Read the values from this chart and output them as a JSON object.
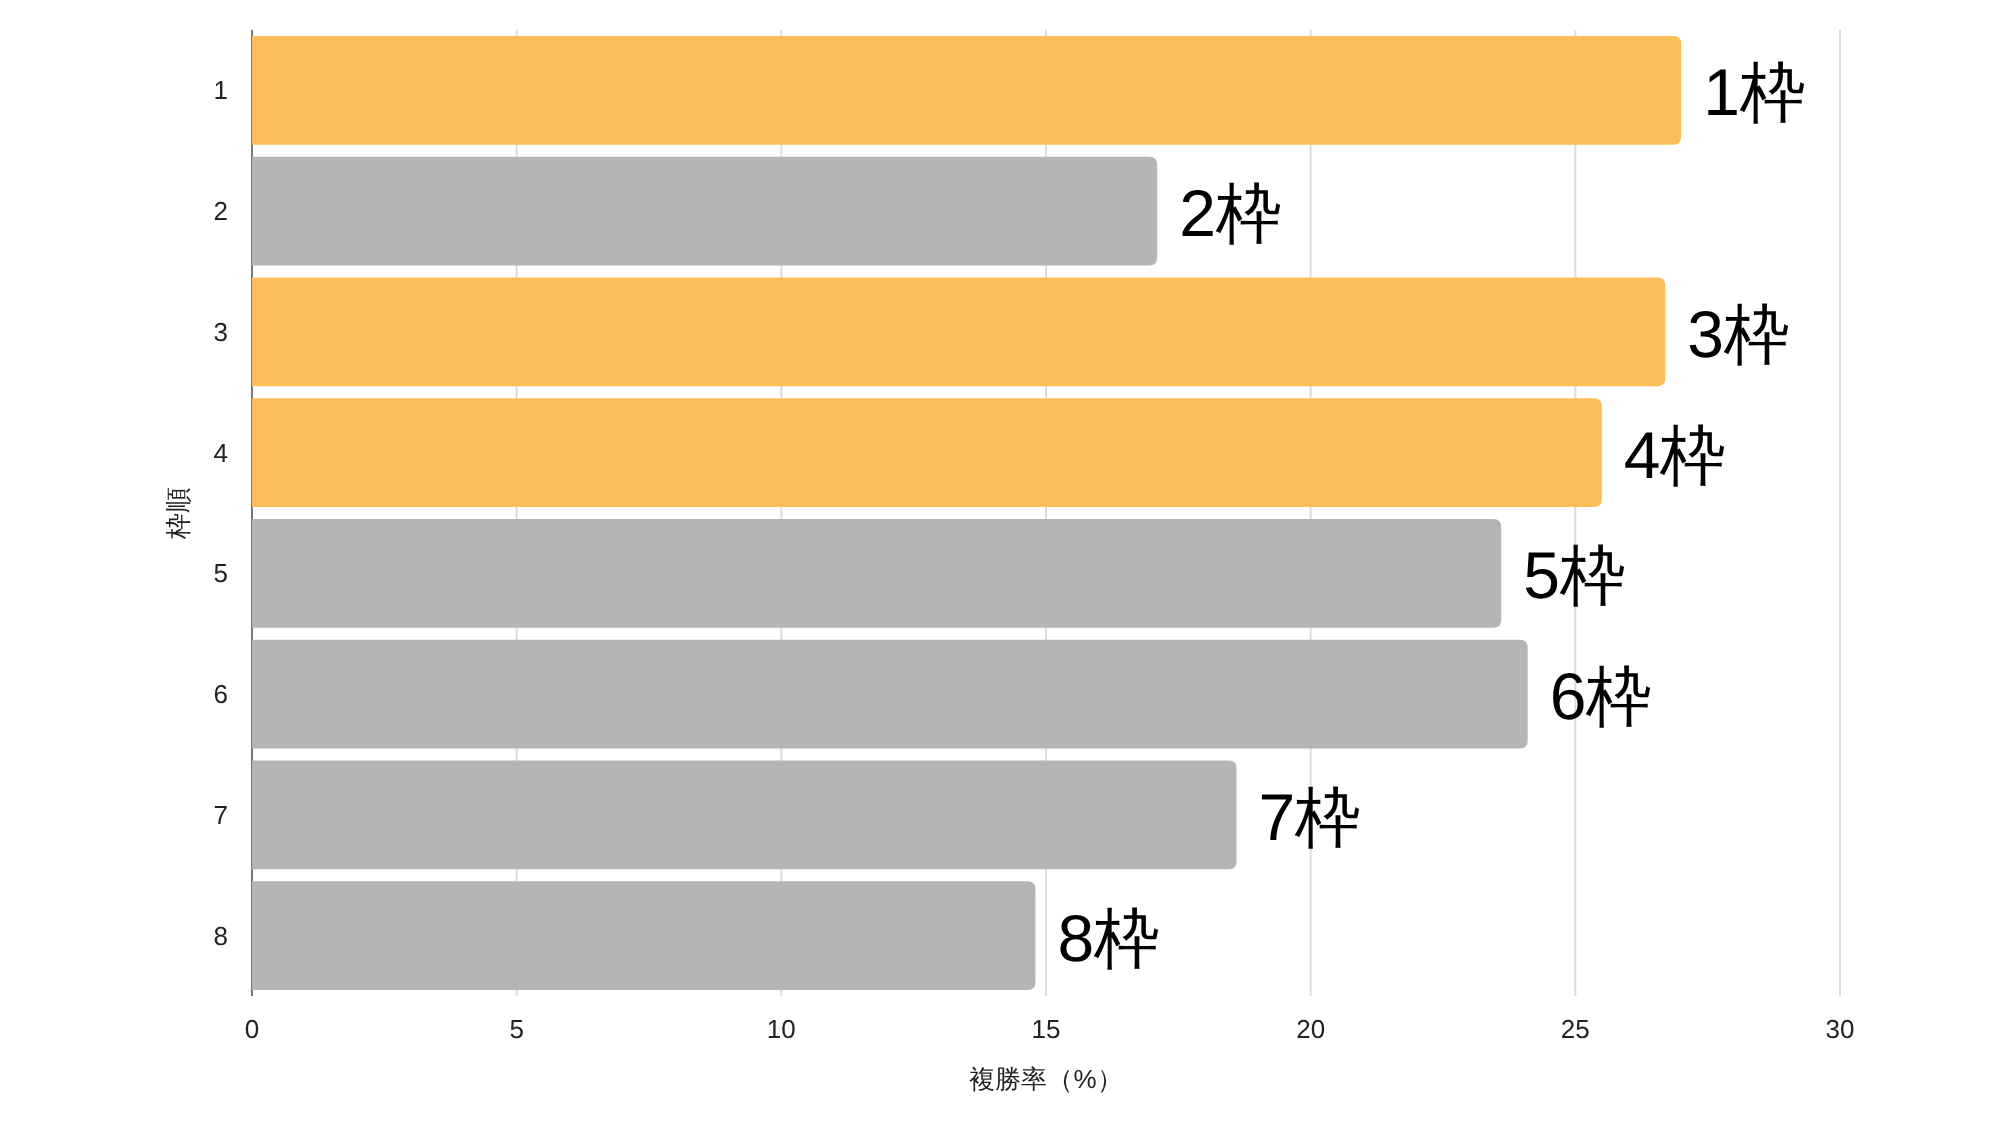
{
  "chart_data": {
    "type": "bar",
    "orientation": "horizontal",
    "xlabel": "複勝率（%）",
    "ylabel": "枠順",
    "categories": [
      "1",
      "2",
      "3",
      "4",
      "5",
      "6",
      "7",
      "8"
    ],
    "values": [
      27.0,
      17.1,
      26.7,
      25.5,
      23.6,
      24.1,
      18.6,
      14.8
    ],
    "colors": [
      "#fdbd5a",
      "#b5b5b5",
      "#fdbd5a",
      "#fdbd5a",
      "#b5b5b5",
      "#b5b5b5",
      "#b5b5b5",
      "#b5b5b5"
    ],
    "annotations": [
      {
        "text": "1枠",
        "x": 27.0,
        "y": "1"
      },
      {
        "text": "2枠",
        "x": 17.1,
        "y": "2"
      },
      {
        "text": "3枠",
        "x": 26.7,
        "y": "3"
      },
      {
        "text": "4枠",
        "x": 25.5,
        "y": "4"
      },
      {
        "text": "5枠",
        "x": 23.6,
        "y": "5"
      },
      {
        "text": "6枠",
        "x": 24.1,
        "y": "6"
      },
      {
        "text": "7枠",
        "x": 18.6,
        "y": "7"
      },
      {
        "text": "8枠",
        "x": 14.8,
        "y": "8"
      }
    ],
    "xlim": [
      0,
      30
    ],
    "xticks": [
      0,
      5,
      10,
      15,
      20,
      25,
      30
    ],
    "grid": "x"
  }
}
